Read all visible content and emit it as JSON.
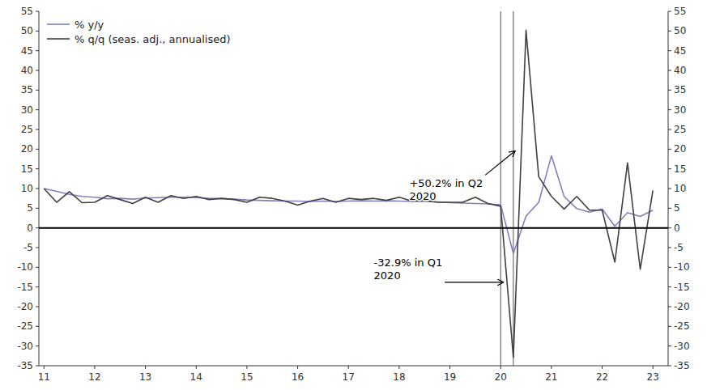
{
  "chart_data": {
    "type": "line",
    "x": [
      2011.0,
      2011.25,
      2011.5,
      2011.75,
      2012.0,
      2012.25,
      2012.5,
      2012.75,
      2013.0,
      2013.25,
      2013.5,
      2013.75,
      2014.0,
      2014.25,
      2014.5,
      2014.75,
      2015.0,
      2015.25,
      2015.5,
      2015.75,
      2016.0,
      2016.25,
      2016.5,
      2016.75,
      2017.0,
      2017.25,
      2017.5,
      2017.75,
      2018.0,
      2018.25,
      2018.5,
      2018.75,
      2019.0,
      2019.25,
      2019.5,
      2019.75,
      2020.0,
      2020.25,
      2020.5,
      2020.75,
      2021.0,
      2021.25,
      2021.5,
      2021.75,
      2022.0,
      2022.25,
      2022.5,
      2022.75,
      2023.0
    ],
    "series": [
      {
        "name": "% y/y",
        "color": "#8080C0",
        "values": [
          10.0,
          9.3,
          8.5,
          8.0,
          7.8,
          7.4,
          7.5,
          7.3,
          7.6,
          7.7,
          7.8,
          7.8,
          7.7,
          7.5,
          7.4,
          7.3,
          7.1,
          7.0,
          6.9,
          6.8,
          6.8,
          6.7,
          6.8,
          6.7,
          6.8,
          6.9,
          6.8,
          6.9,
          6.8,
          6.7,
          6.7,
          6.6,
          6.4,
          6.3,
          6.2,
          6.1,
          5.9,
          -6.5,
          3.0,
          6.5,
          18.3,
          8.0,
          4.9,
          4.0,
          4.8,
          0.4,
          3.9,
          2.9,
          4.5
        ]
      },
      {
        "name": "% q/q (seas. adj., annualised)",
        "color": "#404040",
        "values": [
          10.0,
          6.5,
          9.2,
          6.4,
          6.5,
          8.2,
          7.2,
          6.2,
          7.8,
          6.5,
          8.2,
          7.5,
          8.0,
          7.2,
          7.5,
          7.2,
          6.5,
          7.8,
          7.5,
          6.8,
          5.8,
          6.8,
          7.5,
          6.5,
          7.5,
          7.2,
          7.5,
          7.0,
          7.8,
          6.8,
          7.0,
          6.5,
          6.5,
          6.5,
          7.8,
          6.2,
          5.5,
          -32.9,
          50.2,
          13.0,
          8.0,
          4.8,
          8.0,
          4.5,
          4.5,
          -8.7,
          16.5,
          -10.5,
          9.5
        ]
      }
    ],
    "xlim": [
      2010.9,
      2023.3
    ],
    "xticks": [
      {
        "value": 2011,
        "label": "11"
      },
      {
        "value": 2012,
        "label": "12"
      },
      {
        "value": 2013,
        "label": "13"
      },
      {
        "value": 2014,
        "label": "14"
      },
      {
        "value": 2015,
        "label": "15"
      },
      {
        "value": 2016,
        "label": "16"
      },
      {
        "value": 2017,
        "label": "17"
      },
      {
        "value": 2018,
        "label": "18"
      },
      {
        "value": 2019,
        "label": "19"
      },
      {
        "value": 2020,
        "label": "20"
      },
      {
        "value": 2021,
        "label": "21"
      },
      {
        "value": 2022,
        "label": "22"
      },
      {
        "value": 2023,
        "label": "23"
      }
    ],
    "ylim": [
      -35,
      55
    ],
    "yticks": [
      -35,
      -30,
      -25,
      -20,
      -15,
      -10,
      -5,
      0,
      5,
      10,
      15,
      20,
      25,
      30,
      35,
      40,
      45,
      50,
      55
    ],
    "y2lim": [
      -35,
      55
    ],
    "y2ticks": [
      -35,
      -30,
      -25,
      -20,
      -15,
      -10,
      -5,
      0,
      5,
      10,
      15,
      20,
      25,
      30,
      35,
      40,
      45,
      50,
      55
    ],
    "reference_lines": [
      {
        "axis": "x",
        "value": 2020.0,
        "color": "#505050"
      },
      {
        "axis": "x",
        "value": 2020.25,
        "color": "#505050"
      },
      {
        "axis": "y",
        "value": 0,
        "color": "#000000"
      }
    ],
    "annotations": [
      {
        "text": "+50.2% in Q2\n2020",
        "xy": [
          2020.28,
          19.5
        ],
        "xytext": [
          2018.2,
          12.8
        ]
      },
      {
        "text": "-32.9% in Q1\n2020",
        "xy": [
          2020.05,
          -13.8
        ],
        "xytext": [
          2017.5,
          -7.2
        ]
      }
    ],
    "legend": "upper left",
    "grid": false
  }
}
